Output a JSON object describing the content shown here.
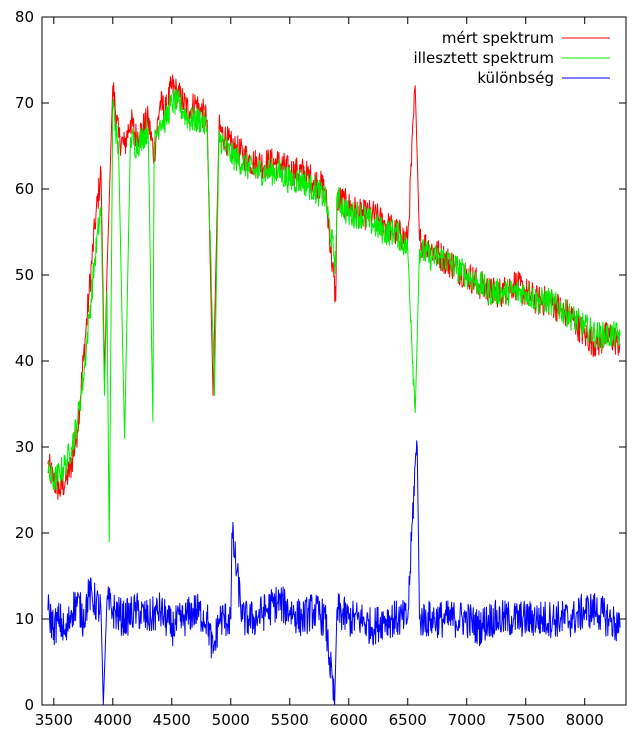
{
  "chart_data": {
    "type": "line",
    "title": "",
    "xlabel": "",
    "ylabel": "",
    "xlim": [
      3400,
      8350
    ],
    "ylim": [
      0,
      80
    ],
    "x_ticks": [
      3500,
      4000,
      4500,
      5000,
      5500,
      6000,
      6500,
      7000,
      7500,
      8000
    ],
    "y_ticks": [
      0,
      10,
      20,
      30,
      40,
      50,
      60,
      70,
      80
    ],
    "grid": false,
    "legend_position": "top-right",
    "series": [
      {
        "name": "mért spektrum",
        "color": "#ff0000",
        "x": [
          3450,
          3500,
          3550,
          3600,
          3650,
          3700,
          3750,
          3800,
          3850,
          3900,
          3930,
          3950,
          3980,
          4000,
          4050,
          4100,
          4150,
          4200,
          4250,
          4300,
          4350,
          4400,
          4450,
          4500,
          4550,
          4600,
          4650,
          4700,
          4750,
          4800,
          4850,
          4900,
          4950,
          5000,
          5100,
          5200,
          5300,
          5400,
          5500,
          5600,
          5700,
          5800,
          5890,
          5900,
          6000,
          6100,
          6200,
          6300,
          6400,
          6500,
          6563,
          6600,
          6700,
          6800,
          6900,
          7000,
          7100,
          7200,
          7300,
          7400,
          7500,
          7600,
          7700,
          7800,
          7900,
          8000,
          8100,
          8200,
          8300
        ],
        "values": [
          28,
          26,
          25,
          26,
          28,
          32,
          40,
          48,
          56,
          62,
          38,
          50,
          63,
          72,
          66,
          65,
          68,
          66,
          67,
          68,
          64,
          70,
          69,
          72,
          71,
          70,
          69,
          70,
          69,
          68,
          36,
          67,
          66,
          65,
          64,
          63,
          63,
          63,
          62,
          62,
          61,
          60,
          47,
          59,
          58,
          57,
          57,
          56,
          55,
          54,
          72,
          54,
          53,
          52,
          51,
          50,
          49,
          48,
          48,
          49,
          48,
          47,
          47,
          46,
          45,
          43,
          42,
          43,
          42
        ]
      },
      {
        "name": "illesztett spektrum",
        "color": "#00ee00",
        "x": [
          3450,
          3500,
          3550,
          3600,
          3650,
          3700,
          3750,
          3800,
          3850,
          3900,
          3930,
          3950,
          3970,
          4000,
          4050,
          4100,
          4150,
          4200,
          4250,
          4300,
          4340,
          4350,
          4400,
          4450,
          4500,
          4550,
          4600,
          4650,
          4700,
          4750,
          4800,
          4861,
          4900,
          4950,
          5000,
          5100,
          5200,
          5300,
          5400,
          5500,
          5600,
          5700,
          5800,
          5890,
          5900,
          6000,
          6100,
          6200,
          6300,
          6400,
          6500,
          6563,
          6600,
          6700,
          6800,
          6900,
          7000,
          7100,
          7200,
          7300,
          7400,
          7500,
          7600,
          7700,
          7800,
          7900,
          8000,
          8100,
          8200,
          8300
        ],
        "values": [
          27,
          26,
          27,
          28,
          30,
          33,
          38,
          45,
          52,
          58,
          36,
          48,
          19,
          70,
          64,
          31,
          66,
          65,
          66,
          67,
          33,
          65,
          68,
          68,
          70,
          70,
          69,
          68,
          68,
          68,
          67,
          36,
          66,
          65,
          64,
          63,
          62,
          62,
          62,
          61,
          61,
          60,
          59,
          51,
          59,
          57,
          57,
          56,
          55,
          55,
          53,
          34,
          53,
          52,
          52,
          51,
          50,
          49,
          48,
          48,
          48,
          48,
          47,
          47,
          46,
          45,
          44,
          43,
          43,
          43
        ]
      },
      {
        "name": "különbség",
        "color": "#0000ff",
        "x": [
          3450,
          3500,
          3550,
          3600,
          3650,
          3700,
          3750,
          3800,
          3850,
          3900,
          3920,
          3950,
          4000,
          4100,
          4200,
          4300,
          4400,
          4500,
          4600,
          4700,
          4800,
          4850,
          4900,
          5000,
          5010,
          5100,
          5200,
          5300,
          5400,
          5500,
          5600,
          5700,
          5800,
          5880,
          5900,
          6000,
          6100,
          6200,
          6300,
          6400,
          6500,
          6563,
          6580,
          6600,
          6700,
          6800,
          6900,
          7000,
          7100,
          7200,
          7300,
          7400,
          7500,
          7600,
          7700,
          7800,
          7900,
          8000,
          8100,
          8200,
          8300
        ],
        "values": [
          11,
          9,
          10,
          8,
          11,
          12,
          10,
          13,
          12,
          11,
          0,
          12,
          11,
          10,
          11,
          10,
          11,
          9,
          10,
          11,
          10,
          6,
          10,
          10,
          20,
          10,
          10,
          11,
          12,
          11,
          10,
          11,
          10,
          0,
          11,
          10,
          10,
          9,
          10,
          10,
          10,
          28,
          30,
          10,
          10,
          10,
          10,
          10,
          9,
          10,
          10,
          10,
          10,
          10,
          10,
          10,
          10,
          11,
          11,
          10,
          9
        ]
      }
    ]
  }
}
